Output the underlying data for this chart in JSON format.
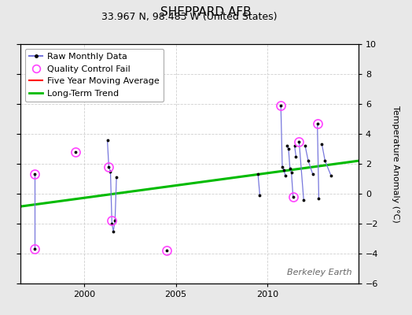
{
  "title": "SHEPPARD AFB",
  "subtitle": "33.967 N, 98.483 W (United States)",
  "ylabel_right": "Temperature Anomaly (°C)",
  "watermark": "Berkeley Earth",
  "background_color": "#e8e8e8",
  "plot_bg_color": "#ffffff",
  "ylim": [
    -6,
    10
  ],
  "xlim": [
    1996.5,
    2015.0
  ],
  "yticks": [
    -6,
    -4,
    -2,
    0,
    2,
    4,
    6,
    8,
    10
  ],
  "xticks": [
    2000,
    2005,
    2010
  ],
  "grid_color": "#d0d0d0",
  "segments": [
    [
      [
        1997.25,
        1.3
      ],
      [
        1997.25,
        -3.7
      ]
    ],
    [
      [
        2001.25,
        3.6
      ],
      [
        2001.33,
        1.8
      ],
      [
        2001.42,
        1.5
      ],
      [
        2001.5,
        -2.0
      ],
      [
        2001.58,
        -2.5
      ],
      [
        2001.67,
        -1.8
      ],
      [
        2001.75,
        1.1
      ]
    ],
    [
      [
        2009.5,
        1.3
      ],
      [
        2009.6,
        -0.1
      ]
    ],
    [
      [
        2010.75,
        5.9
      ],
      [
        2010.83,
        1.8
      ],
      [
        2010.92,
        1.6
      ],
      [
        2011.0,
        1.2
      ]
    ],
    [
      [
        2011.08,
        3.2
      ],
      [
        2011.17,
        3.0
      ],
      [
        2011.25,
        1.7
      ],
      [
        2011.33,
        1.4
      ],
      [
        2011.42,
        -0.2
      ]
    ],
    [
      [
        2011.5,
        3.2
      ],
      [
        2011.58,
        2.5
      ]
    ],
    [
      [
        2011.75,
        3.5
      ],
      [
        2012.0,
        -0.4
      ]
    ],
    [
      [
        2012.08,
        3.2
      ],
      [
        2012.25,
        2.2
      ],
      [
        2012.5,
        1.3
      ]
    ],
    [
      [
        2012.75,
        4.7
      ],
      [
        2012.83,
        -0.3
      ]
    ],
    [
      [
        2013.0,
        3.3
      ],
      [
        2013.17,
        2.2
      ],
      [
        2013.5,
        1.2
      ]
    ]
  ],
  "standalone_points": [
    [
      1999.5,
      2.8
    ],
    [
      2004.5,
      -3.8
    ]
  ],
  "qc_fail_points": [
    [
      1997.25,
      1.3
    ],
    [
      1997.25,
      -3.7
    ],
    [
      1999.5,
      2.8
    ],
    [
      2001.33,
      1.8
    ],
    [
      2001.5,
      -1.8
    ],
    [
      2004.5,
      -3.8
    ],
    [
      2010.75,
      5.9
    ],
    [
      2011.42,
      -0.2
    ],
    [
      2011.75,
      3.5
    ],
    [
      2012.75,
      4.7
    ]
  ],
  "trend_x": [
    1996.5,
    2015.0
  ],
  "trend_y": [
    -0.85,
    2.2
  ],
  "colors": {
    "raw_line": "#7777dd",
    "raw_dot": "#000000",
    "qc_fail": "#ff44ff",
    "trend": "#00bb00",
    "moving_avg": "#ff0000"
  },
  "title_fontsize": 11,
  "subtitle_fontsize": 9,
  "tick_fontsize": 8,
  "legend_fontsize": 8
}
